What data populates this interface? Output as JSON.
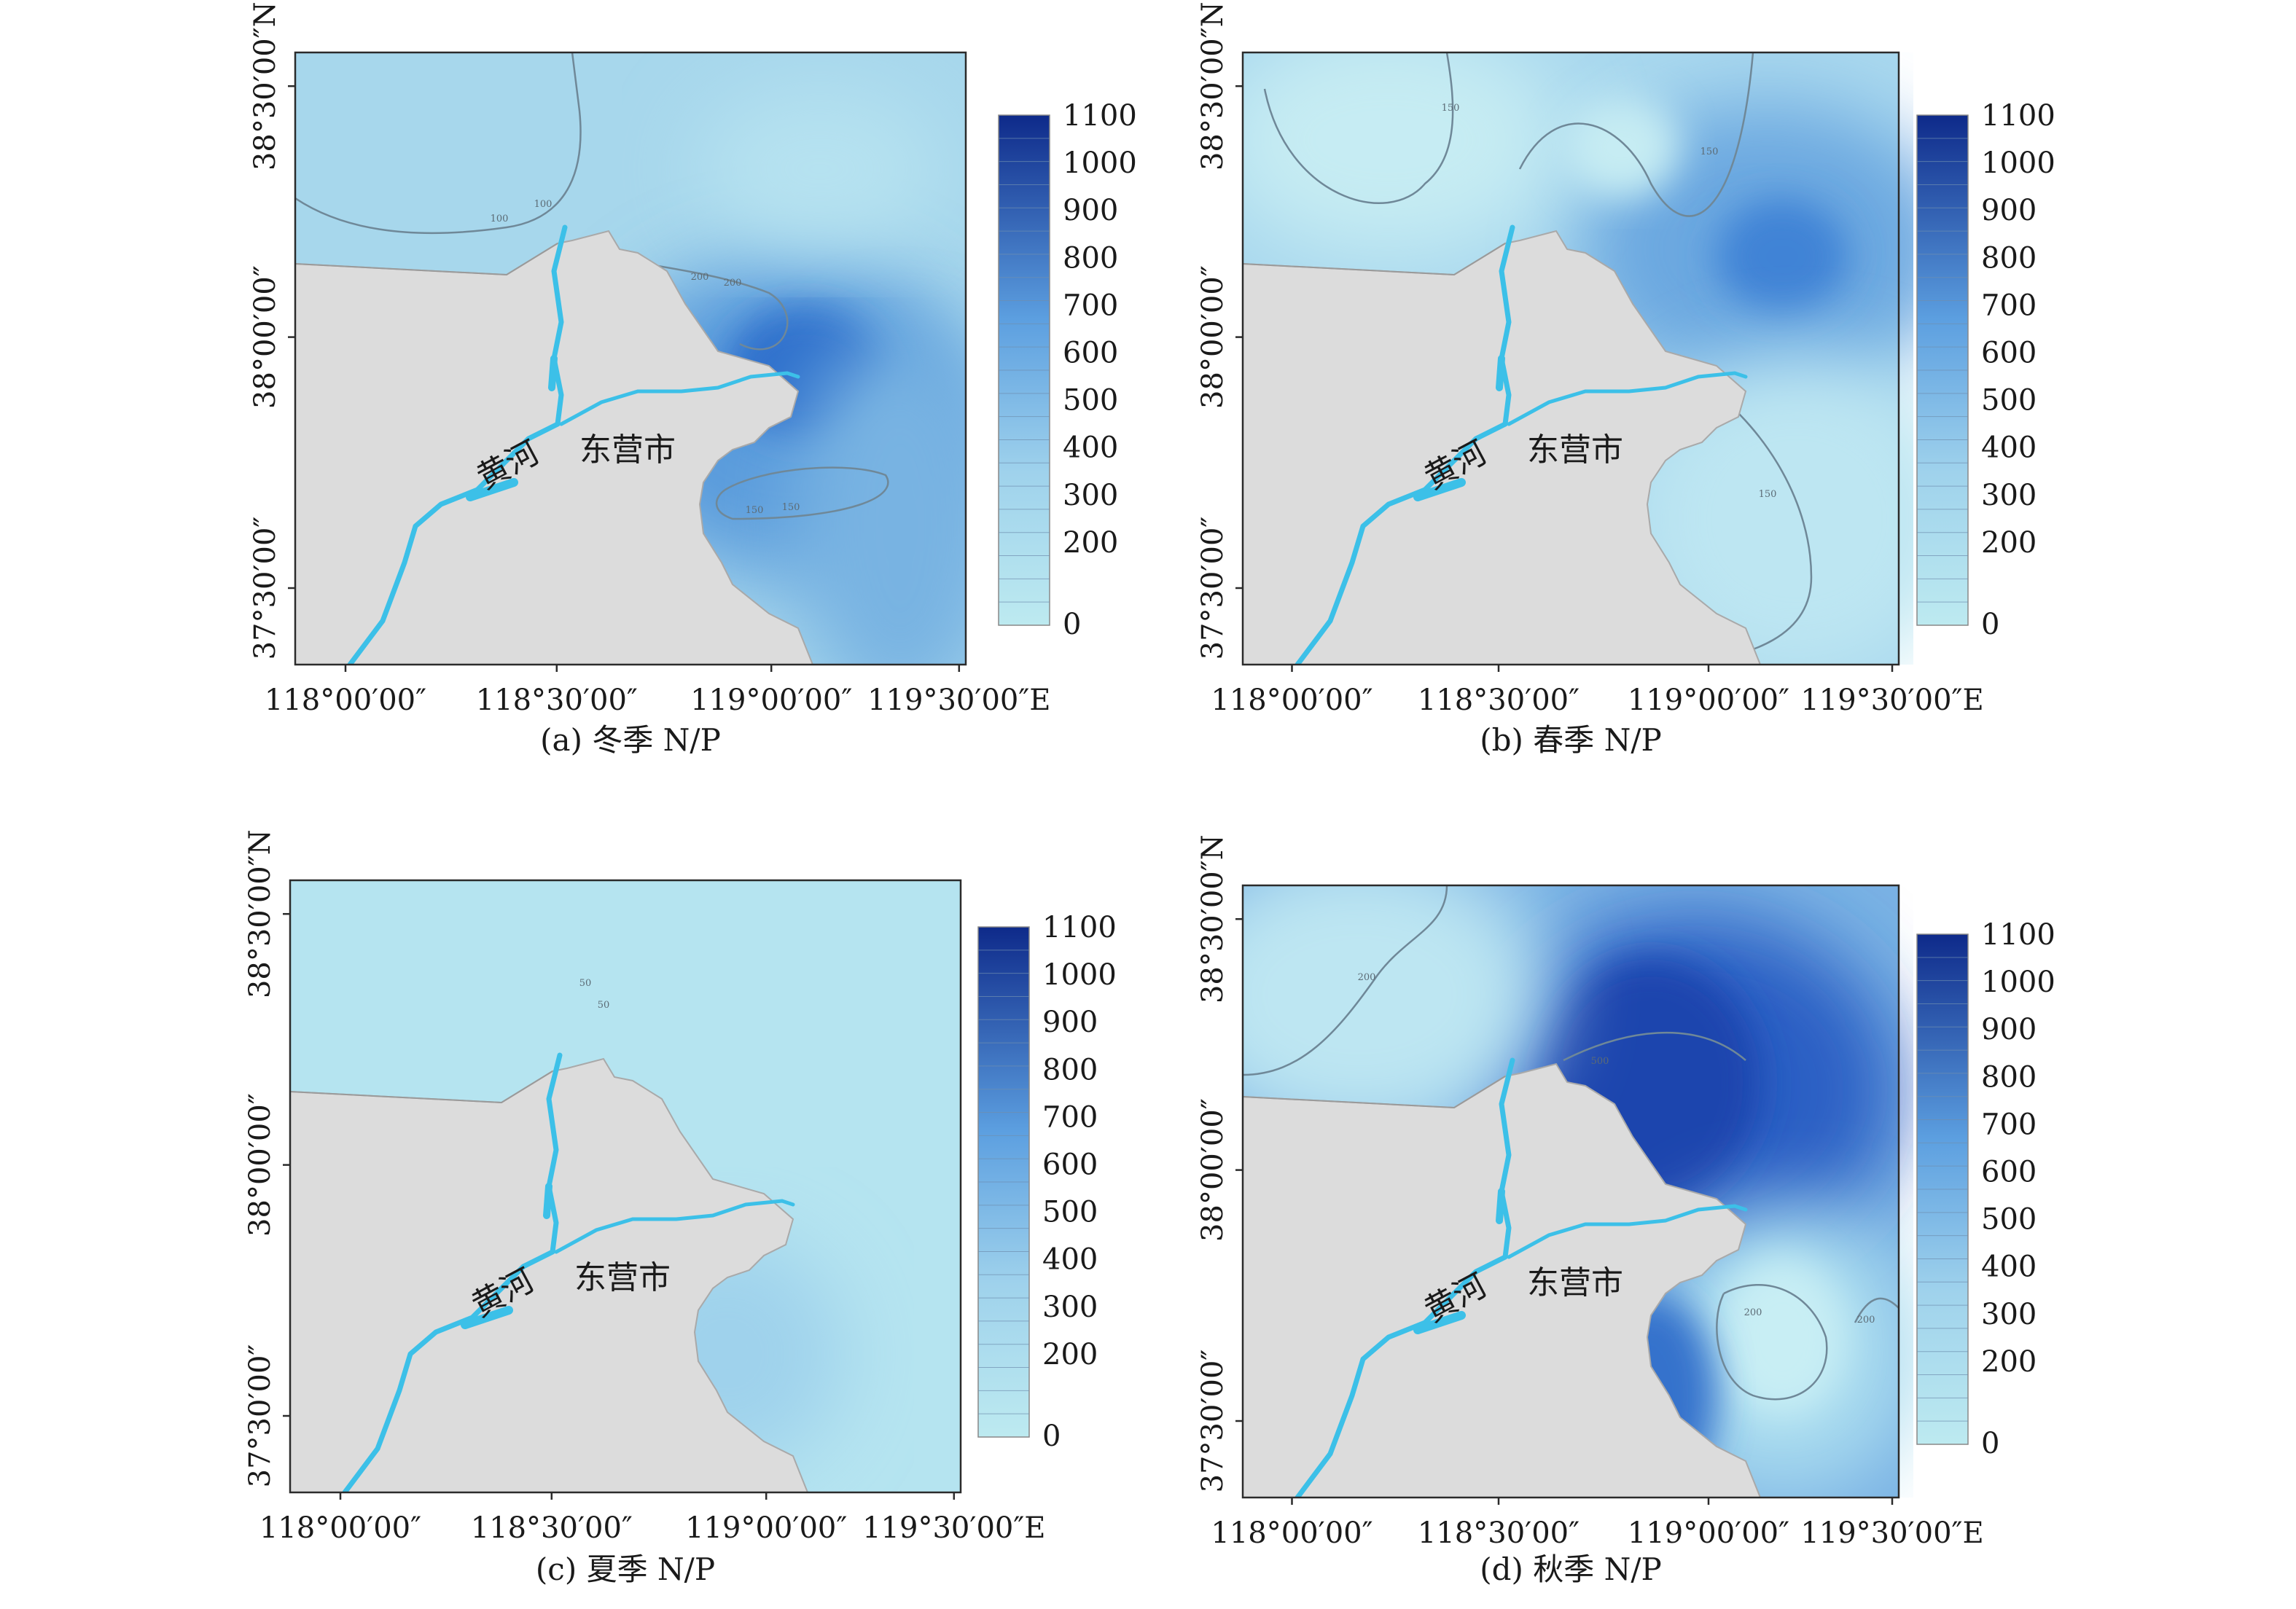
{
  "legend_ticks": [
    "1100",
    "1000",
    "900",
    "800",
    "700",
    "600",
    "500",
    "400",
    "300",
    "200",
    "0"
  ],
  "lon_ticks": [
    "118°00′00″",
    "118°30′00″",
    "119°00′00″",
    "119°30′00″E"
  ],
  "lat_ticks": [
    "38°30′00″N",
    "38°00′00″",
    "37°30′00″"
  ],
  "labels": {
    "river": "黄河",
    "city": "东营市"
  },
  "panels": [
    {
      "id": "a",
      "caption": "(a) 冬季 N/P",
      "contour_labels": [
        "100",
        "100",
        "200",
        "200",
        "150",
        "150"
      ]
    },
    {
      "id": "b",
      "caption": "(b) 春季 N/P",
      "contour_labels": [
        "150",
        "150",
        "150"
      ]
    },
    {
      "id": "c",
      "caption": "(c) 夏季 N/P",
      "contour_labels": [
        "50",
        "50",
        "50"
      ]
    },
    {
      "id": "d",
      "caption": "(d) 秋季 N/P",
      "contour_labels": [
        "200",
        "500",
        "200",
        "200"
      ]
    }
  ]
}
